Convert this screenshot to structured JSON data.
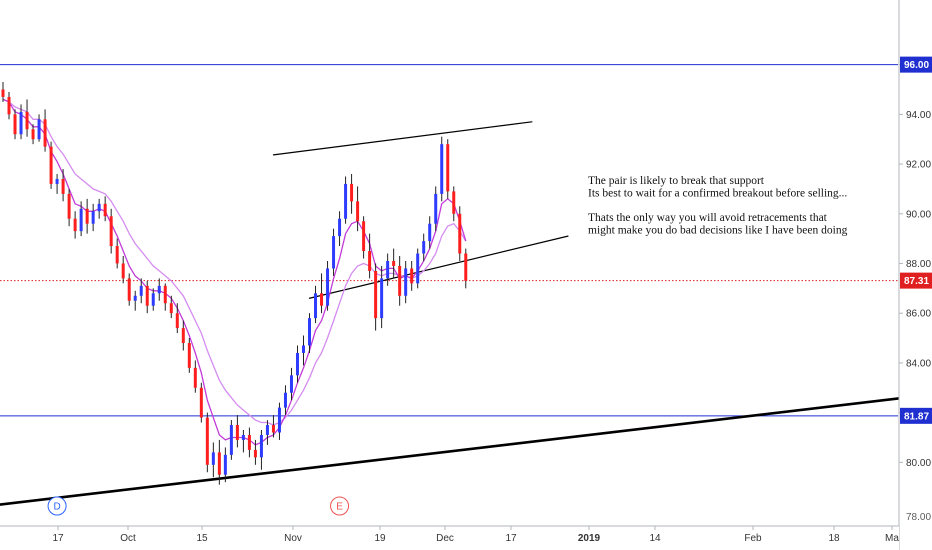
{
  "chart_data": {
    "type": "candlestick",
    "title": "",
    "x_ticks": [
      "17",
      "Oct",
      "15",
      "Nov",
      "19",
      "Dec",
      "17",
      "2019",
      "14",
      "Feb",
      "18",
      "Ma"
    ],
    "y_ticks": [
      "80.00",
      "82.00",
      "84.00",
      "86.00",
      "88.00",
      "90.00",
      "92.00",
      "94.00",
      "96.00"
    ],
    "y_partial_tick": "78.00",
    "ylim": [
      77.8,
      98.6
    ],
    "grid": false,
    "colors": {
      "up": "#2e3cff",
      "down": "#ff1e1e",
      "ema_fast": "#c23bd8",
      "ema_slow": "#d58cf0",
      "hline": "#1f2fd0",
      "price_line": "#e02020",
      "trend": "#000000"
    },
    "candles": [
      [
        95.0,
        95.3,
        94.5,
        94.7
      ],
      [
        94.7,
        94.9,
        93.8,
        94.0
      ],
      [
        94.0,
        94.2,
        93.0,
        93.2
      ],
      [
        93.2,
        94.4,
        93.0,
        94.1
      ],
      [
        94.1,
        94.6,
        93.1,
        93.4
      ],
      [
        93.4,
        93.6,
        92.8,
        93.0
      ],
      [
        93.0,
        94.0,
        92.9,
        93.8
      ],
      [
        93.8,
        94.2,
        92.5,
        92.7
      ],
      [
        92.7,
        92.9,
        91.0,
        91.2
      ],
      [
        91.2,
        91.6,
        90.8,
        91.4
      ],
      [
        91.4,
        91.8,
        90.5,
        90.8
      ],
      [
        90.8,
        91.0,
        89.5,
        89.8
      ],
      [
        89.8,
        90.1,
        89.0,
        89.3
      ],
      [
        89.3,
        90.5,
        89.1,
        90.2
      ],
      [
        90.2,
        90.6,
        89.2,
        89.6
      ],
      [
        89.6,
        90.4,
        89.3,
        90.1
      ],
      [
        90.1,
        90.6,
        89.8,
        90.4
      ],
      [
        90.4,
        90.7,
        89.7,
        89.9
      ],
      [
        89.9,
        90.2,
        88.4,
        88.7
      ],
      [
        88.7,
        89.0,
        87.8,
        88.0
      ],
      [
        88.0,
        88.3,
        87.2,
        87.4
      ],
      [
        87.4,
        87.6,
        86.3,
        86.5
      ],
      [
        86.5,
        86.9,
        86.1,
        86.7
      ],
      [
        86.7,
        87.4,
        86.4,
        87.1
      ],
      [
        87.1,
        87.3,
        86.0,
        86.3
      ],
      [
        86.3,
        87.0,
        86.1,
        86.8
      ],
      [
        86.8,
        87.4,
        86.5,
        87.1
      ],
      [
        87.1,
        87.2,
        86.1,
        86.4
      ],
      [
        86.4,
        86.7,
        85.8,
        86.0
      ],
      [
        86.0,
        86.4,
        85.2,
        85.4
      ],
      [
        85.4,
        85.7,
        84.5,
        84.8
      ],
      [
        84.8,
        85.0,
        83.6,
        83.8
      ],
      [
        83.8,
        84.1,
        82.8,
        83.0
      ],
      [
        83.0,
        83.2,
        81.6,
        81.8
      ],
      [
        81.8,
        82.0,
        79.6,
        79.9
      ],
      [
        79.9,
        80.8,
        79.4,
        80.4
      ],
      [
        80.4,
        80.9,
        79.1,
        79.5
      ],
      [
        79.5,
        80.6,
        79.2,
        80.3
      ],
      [
        80.3,
        81.7,
        80.1,
        81.5
      ],
      [
        81.5,
        81.9,
        80.6,
        80.9
      ],
      [
        80.9,
        81.3,
        80.4,
        81.1
      ],
      [
        81.1,
        81.4,
        80.2,
        80.5
      ],
      [
        80.5,
        80.9,
        79.9,
        80.2
      ],
      [
        80.2,
        81.3,
        79.7,
        81.1
      ],
      [
        81.1,
        81.7,
        80.7,
        81.5
      ],
      [
        81.5,
        81.9,
        81.0,
        81.2
      ],
      [
        81.2,
        82.4,
        80.9,
        82.2
      ],
      [
        82.2,
        83.1,
        81.9,
        82.8
      ],
      [
        82.8,
        83.8,
        82.5,
        83.5
      ],
      [
        83.5,
        84.7,
        83.2,
        84.4
      ],
      [
        84.4,
        85.1,
        83.9,
        84.7
      ],
      [
        84.7,
        86.0,
        84.4,
        85.8
      ],
      [
        85.8,
        87.1,
        85.6,
        86.8
      ],
      [
        86.8,
        87.6,
        86.0,
        86.3
      ],
      [
        86.3,
        88.1,
        86.1,
        87.8
      ],
      [
        87.8,
        89.4,
        87.5,
        89.1
      ],
      [
        89.1,
        90.1,
        88.7,
        89.8
      ],
      [
        89.8,
        91.5,
        89.6,
        91.2
      ],
      [
        91.2,
        91.6,
        90.0,
        90.5
      ],
      [
        90.5,
        91.1,
        89.3,
        89.7
      ],
      [
        89.7,
        89.9,
        88.2,
        88.5
      ],
      [
        88.5,
        89.2,
        87.4,
        87.7
      ],
      [
        87.7,
        88.0,
        85.3,
        85.8
      ],
      [
        85.8,
        87.9,
        85.4,
        87.4
      ],
      [
        87.4,
        88.4,
        87.1,
        88.1
      ],
      [
        88.1,
        88.6,
        87.4,
        87.9
      ],
      [
        87.9,
        88.3,
        86.3,
        86.7
      ],
      [
        86.7,
        88.1,
        86.4,
        87.8
      ],
      [
        87.8,
        88.1,
        86.9,
        87.2
      ],
      [
        87.2,
        88.6,
        87.0,
        88.4
      ],
      [
        88.4,
        89.2,
        88.1,
        88.9
      ],
      [
        88.9,
        89.9,
        88.6,
        89.6
      ],
      [
        89.6,
        91.1,
        89.3,
        90.8
      ],
      [
        90.8,
        93.1,
        90.5,
        92.8
      ],
      [
        92.8,
        93.0,
        90.6,
        90.9
      ],
      [
        90.9,
        91.1,
        89.7,
        90.0
      ],
      [
        90.0,
        90.3,
        88.1,
        88.4
      ],
      [
        88.4,
        88.6,
        87.0,
        87.3
      ]
    ],
    "ema_fast_values": [
      94.6,
      94.5,
      94.1,
      94.0,
      93.8,
      93.5,
      93.5,
      93.2,
      92.5,
      92.1,
      91.6,
      91.0,
      90.4,
      90.3,
      90.1,
      90.1,
      90.2,
      90.1,
      89.6,
      89.1,
      88.5,
      87.9,
      87.5,
      87.3,
      87.0,
      86.9,
      86.9,
      86.8,
      86.6,
      86.2,
      85.7,
      85.1,
      84.4,
      83.6,
      82.5,
      81.8,
      81.1,
      80.9,
      81.0,
      81.0,
      81.0,
      80.9,
      80.7,
      80.8,
      81.0,
      81.1,
      81.4,
      81.9,
      82.5,
      83.2,
      83.8,
      84.5,
      85.3,
      85.7,
      86.4,
      87.4,
      88.2,
      89.2,
      89.6,
      89.7,
      89.3,
      88.8,
      87.9,
      87.7,
      87.8,
      87.8,
      87.4,
      87.5,
      87.4,
      87.7,
      88.1,
      88.6,
      89.3,
      90.4,
      90.6,
      90.4,
      89.7,
      88.9
    ],
    "ema_slow_values": [
      94.6,
      94.5,
      94.3,
      94.2,
      94.1,
      93.8,
      93.8,
      93.6,
      93.1,
      92.7,
      92.4,
      92.0,
      91.6,
      91.4,
      91.2,
      91.0,
      90.9,
      90.8,
      90.5,
      90.1,
      89.7,
      89.2,
      88.8,
      88.5,
      88.2,
      87.9,
      87.7,
      87.5,
      87.3,
      87.0,
      86.7,
      86.2,
      85.7,
      85.2,
      84.5,
      83.9,
      83.3,
      82.9,
      82.6,
      82.3,
      82.1,
      81.9,
      81.7,
      81.6,
      81.6,
      81.5,
      81.6,
      81.8,
      82.1,
      82.5,
      82.9,
      83.4,
      84.0,
      84.4,
      85.0,
      85.7,
      86.4,
      87.1,
      87.6,
      87.9,
      88.0,
      87.9,
      87.6,
      87.5,
      87.6,
      87.6,
      87.5,
      87.5,
      87.4,
      87.5,
      87.7,
      88.0,
      88.4,
      89.1,
      89.5,
      89.6,
      89.3,
      88.9
    ],
    "horizontal_lines": [
      {
        "label": "96.00",
        "value": 96.0
      },
      {
        "label": "81.87",
        "value": 81.87
      }
    ],
    "current_price": {
      "label": "87.31",
      "value": 87.31
    },
    "annotation_lines": [
      "The pair is likely to break that support",
      "Its best to wait for a confirmed breakout before selling...",
      "",
      "Thats the only way you will avoid retracements that",
      "might make you do bad decisions like I have been doing"
    ],
    "event_markers": [
      {
        "letter": "D",
        "color": "#2962ff",
        "index": 9
      },
      {
        "letter": "E",
        "color": "#ef5350",
        "index": 56
      },
      {
        "letter": "E",
        "color": "#ef5350",
        "index": 173
      }
    ]
  }
}
